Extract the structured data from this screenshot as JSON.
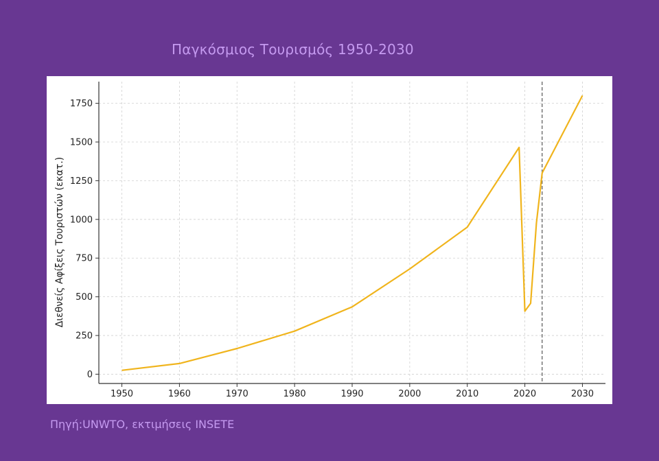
{
  "slide": {
    "title": "Παγκόσμιος Τουρισμός 1950-2030",
    "source": "Πηγή:UNWTO, εκτιμήσεις INSETE"
  },
  "colors": {
    "background": "#683792",
    "title_text": "#c59af0",
    "line": "#f0b41c",
    "vline": "#555555",
    "grid": "#d0d0d0"
  },
  "chart_data": {
    "type": "line",
    "title": "",
    "xlabel": "",
    "ylabel": "Διεθνείς Αφίξεις Τουριστών (εκατ.)",
    "xlim": [
      1946,
      2034
    ],
    "ylim": [
      -60,
      1890
    ],
    "xticks": [
      1950,
      1960,
      1970,
      1980,
      1990,
      2000,
      2010,
      2020,
      2030
    ],
    "yticks": [
      0,
      250,
      500,
      750,
      1000,
      1250,
      1500,
      1750
    ],
    "grid": true,
    "vertical_line": {
      "x": 2023,
      "style": "dashed"
    },
    "series": [
      {
        "x": [
          1950,
          1960,
          1970,
          1980,
          1990,
          2000,
          2010,
          2019,
          2020,
          2021,
          2022,
          2023,
          2030
        ],
        "y": [
          25,
          69,
          166,
          278,
          435,
          680,
          950,
          1465,
          407,
          458,
          975,
          1300,
          1800
        ]
      }
    ]
  }
}
